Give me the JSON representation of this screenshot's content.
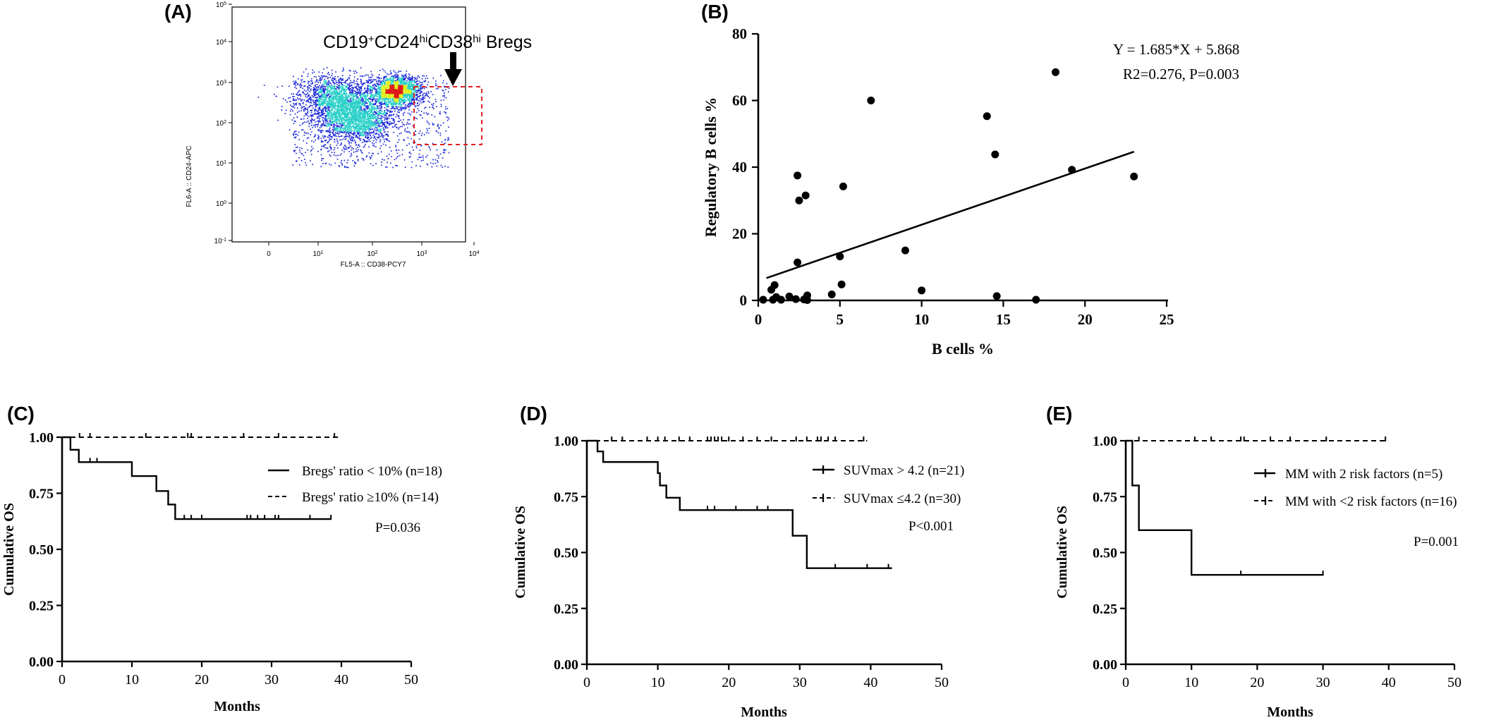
{
  "panels": {
    "A": "(A)",
    "B": "(B)",
    "C": "(C)",
    "D": "(D)",
    "E": "(E)"
  },
  "colors": {
    "axis": "#000000",
    "flow_low": "#1f2bd8",
    "flow_mid": "#2ad0c8",
    "flow_high": "#e0f020",
    "flow_peak": "#e01a1a",
    "gate": "#e02020"
  },
  "chart_data": [
    {
      "panel": "A",
      "type": "scatter",
      "xlabel": "FL5-A :: CD38-PCY7",
      "ylabel": "FL6-A :: CD24-APC",
      "x_ticks": [
        "0",
        "10^1",
        "10^2",
        "10^3",
        "10^4"
      ],
      "y_ticks": [
        "10^-1",
        "10^0",
        "10^1",
        "10^2",
        "10^3",
        "10^4",
        "10^5"
      ],
      "scale": "log",
      "annotation": {
        "text_parts": [
          "CD19",
          "+",
          "CD24",
          "hi",
          "CD38",
          "hi",
          " Bregs"
        ],
        "gate": "dashed rectangle"
      },
      "populations": [
        {
          "name": "",
          "x_log_center": 1.35,
          "y_log_center": 2.6,
          "spread_x": 0.4,
          "spread_y": 0.3,
          "count": 1400
        },
        {
          "name": "",
          "x_log_center": 1.7,
          "y_log_center": 2.1,
          "spread_x": 0.35,
          "spread_y": 0.3,
          "count": 1600
        },
        {
          "name": "",
          "x_log_center": 2.5,
          "y_log_center": 2.8,
          "spread_x": 0.22,
          "spread_y": 0.18,
          "count": 1800
        }
      ]
    },
    {
      "panel": "B",
      "type": "scatter",
      "xlabel": "B cells %",
      "ylabel": "Regulatory B cells %",
      "xlim": [
        0,
        25
      ],
      "ylim": [
        0,
        80
      ],
      "x_ticks": [
        0,
        5,
        10,
        15,
        20,
        25
      ],
      "y_ticks": [
        0,
        20,
        40,
        60,
        80
      ],
      "equation": "Y = 1.685*X + 5.868",
      "stats": "R2=0.276, P=0.003",
      "fit": {
        "slope": 1.685,
        "intercept": 5.868,
        "x_range": [
          0.5,
          23
        ]
      },
      "points": [
        [
          0.3,
          0.2
        ],
        [
          0.8,
          3.2
        ],
        [
          0.9,
          0.2
        ],
        [
          1.0,
          4.6
        ],
        [
          1.1,
          1.0
        ],
        [
          1.4,
          0.2
        ],
        [
          1.9,
          1.2
        ],
        [
          2.3,
          0.4
        ],
        [
          2.4,
          11.4
        ],
        [
          2.4,
          37.5
        ],
        [
          2.5,
          30.0
        ],
        [
          2.8,
          0.3
        ],
        [
          2.9,
          31.5
        ],
        [
          3.0,
          1.5
        ],
        [
          3.0,
          0.1
        ],
        [
          4.5,
          1.8
        ],
        [
          5.0,
          13.2
        ],
        [
          5.1,
          4.8
        ],
        [
          5.2,
          34.2
        ],
        [
          6.9,
          60.0
        ],
        [
          9.0,
          15.0
        ],
        [
          10.0,
          3.0
        ],
        [
          14.0,
          55.3
        ],
        [
          14.5,
          43.8
        ],
        [
          14.6,
          1.3
        ],
        [
          17.0,
          0.2
        ],
        [
          18.2,
          68.5
        ],
        [
          19.2,
          39.2
        ],
        [
          23.0,
          37.2
        ]
      ]
    },
    {
      "panel": "C",
      "type": "line",
      "xlabel": "Months",
      "ylabel": "Cumulative OS",
      "xlim": [
        0,
        50
      ],
      "ylim": [
        0,
        1
      ],
      "x_ticks": [
        0,
        10,
        20,
        30,
        40,
        50
      ],
      "y_ticks": [
        "0.00",
        "0.25",
        "0.50",
        "0.75",
        "1.00"
      ],
      "p_value": "P=0.036",
      "series": [
        {
          "name": "Bregs' ratio < 10% (n=18)",
          "style": "solid",
          "steps": [
            [
              0,
              1.0
            ],
            [
              1.2,
              0.944
            ],
            [
              2.4,
              0.889
            ],
            [
              10,
              0.827
            ],
            [
              13.5,
              0.76
            ],
            [
              15.2,
              0.7
            ],
            [
              16.2,
              0.635
            ],
            [
              38.5,
              0.635
            ]
          ],
          "censor": [
            4,
            5,
            17.5,
            18.5,
            20,
            26.5,
            27,
            28,
            29,
            30.5,
            31,
            35.5,
            38.5
          ]
        },
        {
          "name": "Bregs' ratio ≥10% (n=14)",
          "style": "dashed",
          "steps": [
            [
              0,
              1.0
            ],
            [
              39.5,
              1.0
            ]
          ],
          "censor": [
            2.5,
            4,
            12,
            18,
            18.5,
            26,
            31,
            39
          ]
        }
      ]
    },
    {
      "panel": "D",
      "type": "line",
      "xlabel": "Months",
      "ylabel": "Cumulative OS",
      "xlim": [
        0,
        50
      ],
      "ylim": [
        0,
        1
      ],
      "x_ticks": [
        0,
        10,
        20,
        30,
        40,
        50
      ],
      "y_ticks": [
        "0.00",
        "0.25",
        "0.50",
        "0.75",
        "1.00"
      ],
      "p_value": "P<0.001",
      "series": [
        {
          "name": "SUVmax > 4.2 (n=21)",
          "style": "solid",
          "steps": [
            [
              0,
              1.0
            ],
            [
              1.5,
              0.952
            ],
            [
              2.3,
              0.905
            ],
            [
              10,
              0.855
            ],
            [
              10.3,
              0.8
            ],
            [
              11.2,
              0.745
            ],
            [
              13.1,
              0.69
            ],
            [
              29,
              0.575
            ],
            [
              31,
              0.43
            ],
            [
              43,
              0.43
            ]
          ],
          "censor": [
            17,
            18,
            21,
            24,
            25.5,
            35,
            39.5,
            42.5
          ]
        },
        {
          "name": "SUVmax ≤4.2 (n=30)",
          "style": "dashed",
          "steps": [
            [
              0,
              1.0
            ],
            [
              39.5,
              1.0
            ]
          ],
          "censor": [
            3.5,
            5,
            8.5,
            10,
            11,
            13,
            14.5,
            17,
            17.5,
            18,
            18.5,
            19,
            20,
            22,
            24,
            26,
            29.5,
            31,
            32.5,
            33,
            34,
            35,
            39
          ]
        }
      ]
    },
    {
      "panel": "E",
      "type": "line",
      "xlabel": "Months",
      "ylabel": "Cumulative OS",
      "xlim": [
        0,
        50
      ],
      "ylim": [
        0,
        1
      ],
      "x_ticks": [
        0,
        10,
        20,
        30,
        40,
        50
      ],
      "y_ticks": [
        "0.00",
        "0.25",
        "0.50",
        "0.75",
        "1.00"
      ],
      "p_value": "P=0.001",
      "series": [
        {
          "name": "MM with 2 risk factors (n=5)",
          "style": "solid",
          "steps": [
            [
              0,
              1.0
            ],
            [
              1,
              0.8
            ],
            [
              2,
              0.6
            ],
            [
              10,
              0.4
            ],
            [
              30,
              0.4
            ]
          ],
          "censor": [
            17.5,
            30
          ]
        },
        {
          "name": "MM with <2 risk factors (n=16)",
          "style": "dashed",
          "steps": [
            [
              0,
              1.0
            ],
            [
              39.5,
              1.0
            ]
          ],
          "censor": [
            2,
            10.5,
            13,
            17.5,
            18,
            22,
            25,
            30.5,
            39.5
          ]
        }
      ]
    }
  ]
}
